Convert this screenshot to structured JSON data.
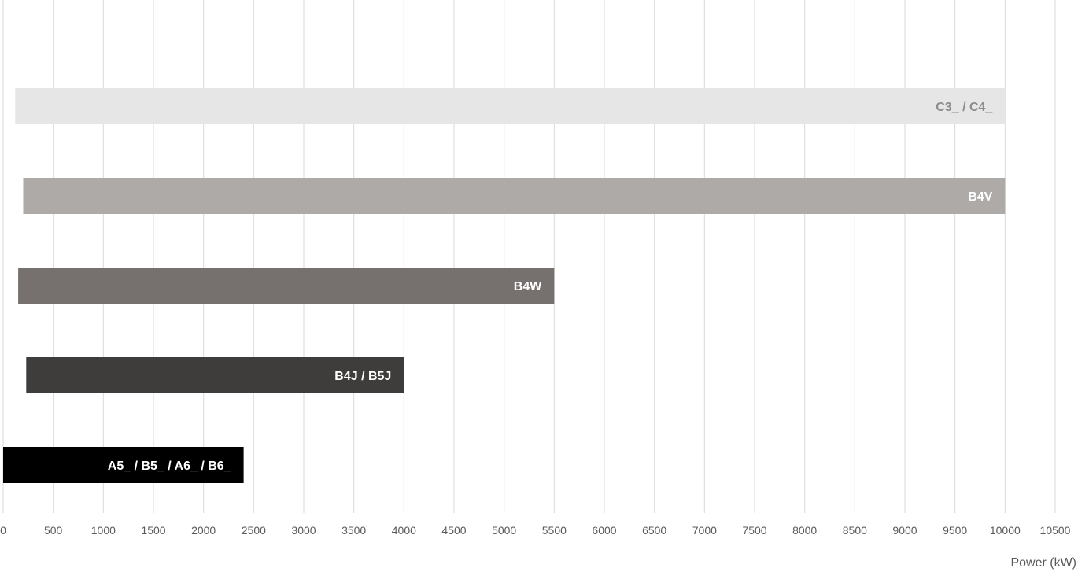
{
  "chart_data": {
    "type": "bar",
    "orientation": "horizontal",
    "floating": true,
    "title": "",
    "xlabel": "Power (kW)",
    "ylabel": "",
    "xlim": [
      0,
      10500
    ],
    "x_ticks": [
      0,
      500,
      1000,
      1500,
      2000,
      2500,
      3000,
      3500,
      4000,
      4500,
      5000,
      5500,
      6000,
      6500,
      7000,
      7500,
      8000,
      8500,
      9000,
      9500,
      10000,
      10500
    ],
    "grid": true,
    "legend": "none",
    "bars": [
      {
        "label": "C3_ / C4_",
        "start": 120,
        "end": 10000,
        "color": "#e6e6e6",
        "label_color": "#8c8c8c"
      },
      {
        "label": "B4V",
        "start": 200,
        "end": 10000,
        "color": "#aeaaa8",
        "label_color": "#ffffff"
      },
      {
        "label": "B4W",
        "start": 150,
        "end": 5500,
        "color": "#76706e",
        "label_color": "#ffffff"
      },
      {
        "label": "B4J / B5J",
        "start": 230,
        "end": 4000,
        "color": "#3f3d3c",
        "label_color": "#ffffff"
      },
      {
        "label": "A5_ / B5_ / A6_ / B6_",
        "start": 0,
        "end": 2400,
        "color": "#000000",
        "label_color": "#ffffff"
      }
    ]
  }
}
